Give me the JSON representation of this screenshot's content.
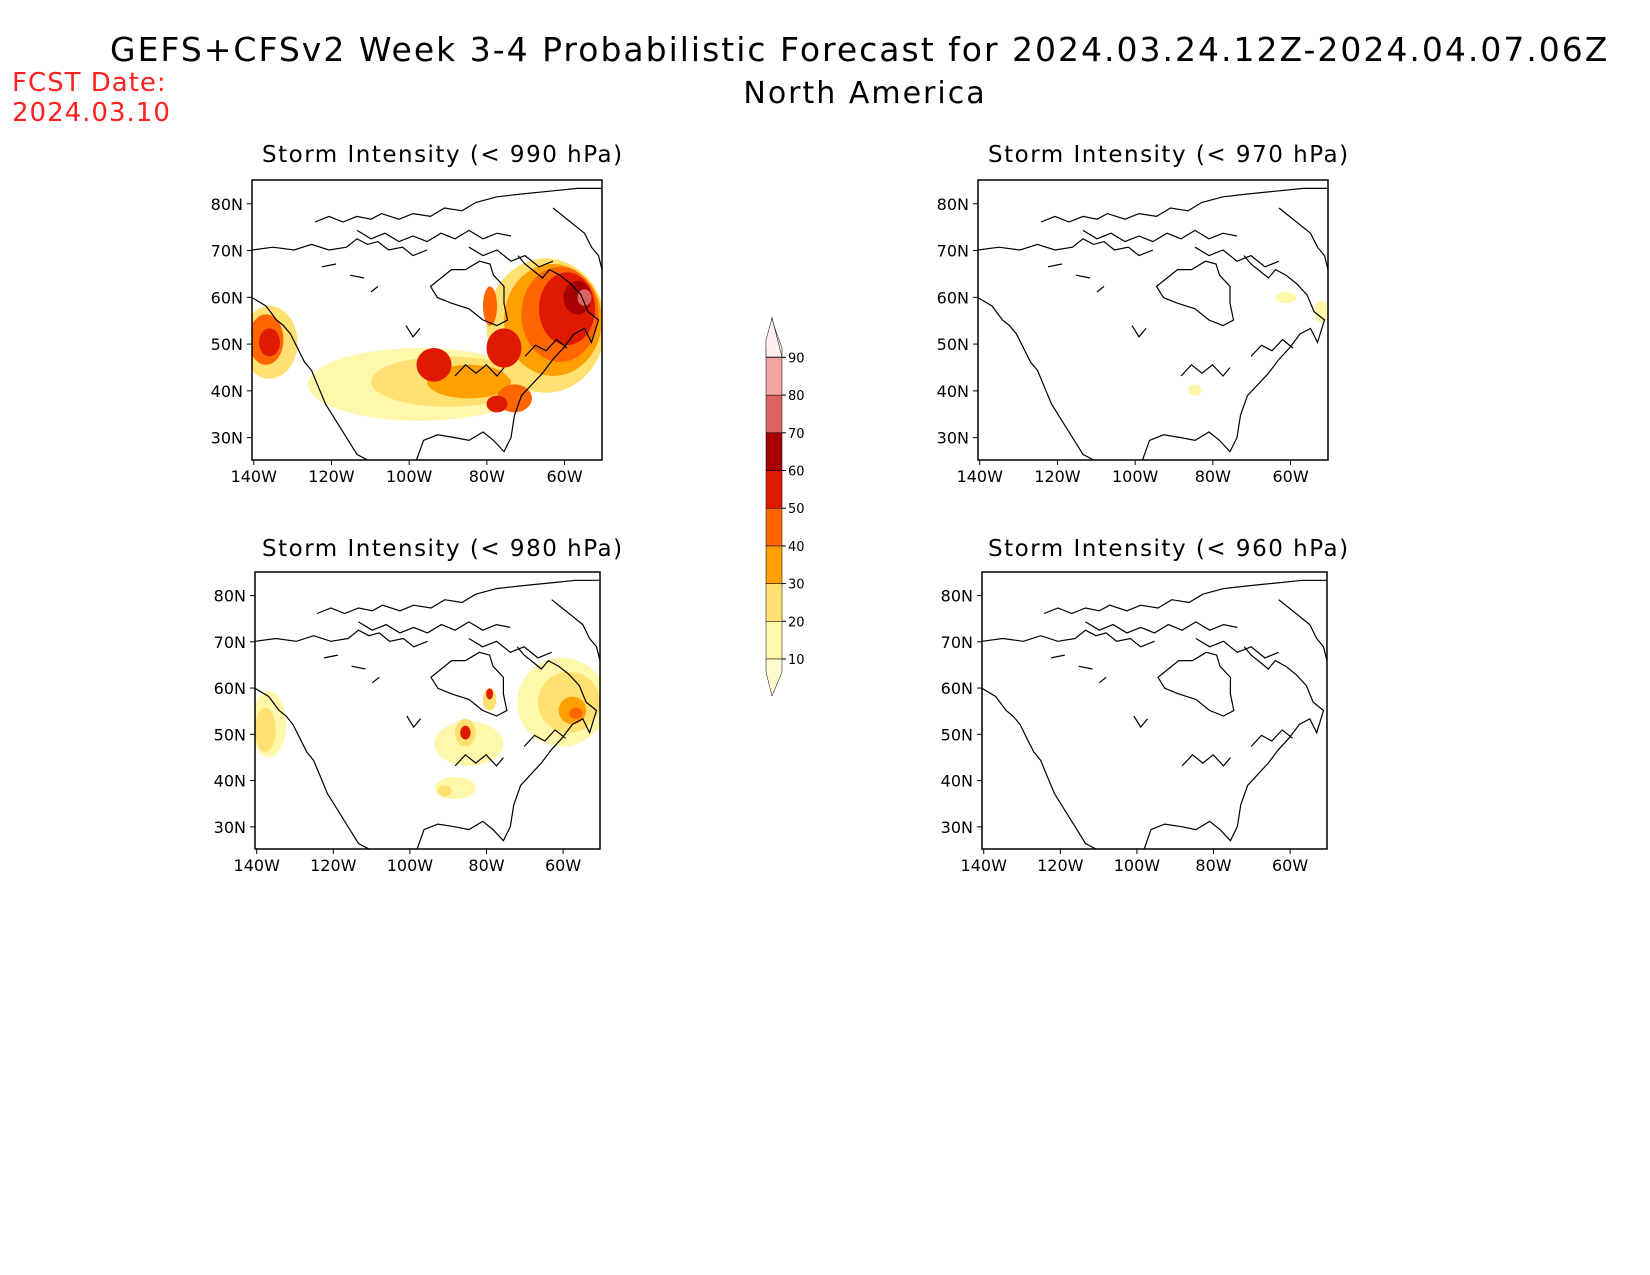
{
  "header": {
    "title": "GEFS+CFSv2 Week 3-4 Probabilistic Forecast for 2024.03.24.12Z-2024.04.07.06Z",
    "subtitle": "North America",
    "fcst_label": "FCST Date:",
    "fcst_date": "2024.03.10"
  },
  "panels": [
    {
      "id": "p990",
      "title": "Storm Intensity (< 990 hPa)"
    },
    {
      "id": "p970",
      "title": "Storm Intensity (< 970 hPa)"
    },
    {
      "id": "p980",
      "title": "Storm Intensity (< 980 hPa)"
    },
    {
      "id": "p960",
      "title": "Storm Intensity (< 960 hPa)"
    }
  ],
  "axes": {
    "lat_ticks": [
      "80N",
      "70N",
      "60N",
      "50N",
      "40N",
      "30N"
    ],
    "lon_ticks": [
      "140W",
      "120W",
      "100W",
      "80W",
      "60W"
    ]
  },
  "colorbar": {
    "levels": [
      "10",
      "20",
      "30",
      "40",
      "50",
      "60",
      "70",
      "80",
      "90"
    ],
    "colors": [
      "#fff7aa",
      "#ffe070",
      "#ff9f00",
      "#ff6600",
      "#e01a00",
      "#a80000",
      "#dc6464",
      "#f4a3a3",
      "#ffe6e6"
    ]
  }
}
